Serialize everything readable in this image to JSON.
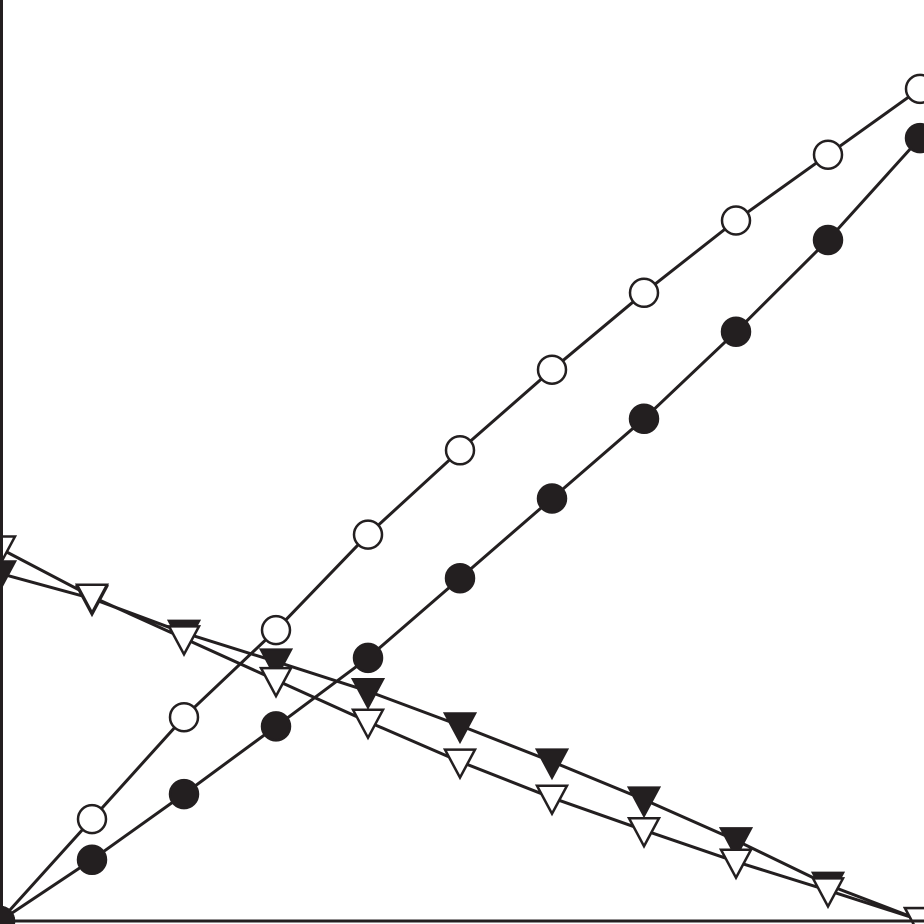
{
  "chart_data": {
    "type": "line",
    "title": "",
    "xlabel": "",
    "ylabel": "",
    "xlim": [
      0,
      10
    ],
    "ylim": [
      0,
      10
    ],
    "grid": false,
    "legend": "none",
    "x": [
      0,
      1,
      2,
      3,
      4,
      5,
      6,
      7,
      8,
      9,
      10
    ],
    "series": [
      {
        "marker": "circle-open",
        "color": "#231f20",
        "values": [
          0.0,
          1.1,
          2.2,
          3.14,
          4.17,
          5.08,
          5.95,
          6.78,
          7.56,
          8.27,
          8.98
        ]
      },
      {
        "marker": "circle-filled",
        "color": "#231f20",
        "values": [
          0.0,
          0.66,
          1.37,
          2.1,
          2.84,
          3.7,
          4.56,
          5.42,
          6.36,
          7.35,
          8.45
        ]
      },
      {
        "marker": "triangle-down-filled",
        "color": "#231f20",
        "values": [
          3.75,
          3.48,
          3.11,
          2.8,
          2.48,
          2.11,
          1.72,
          1.31,
          0.87,
          0.39,
          0.01
        ]
      },
      {
        "marker": "triangle-down-open",
        "color": "#231f20",
        "values": [
          4.02,
          3.5,
          3.05,
          2.6,
          2.15,
          1.72,
          1.33,
          0.98,
          0.64,
          0.33,
          0.01
        ]
      }
    ]
  }
}
